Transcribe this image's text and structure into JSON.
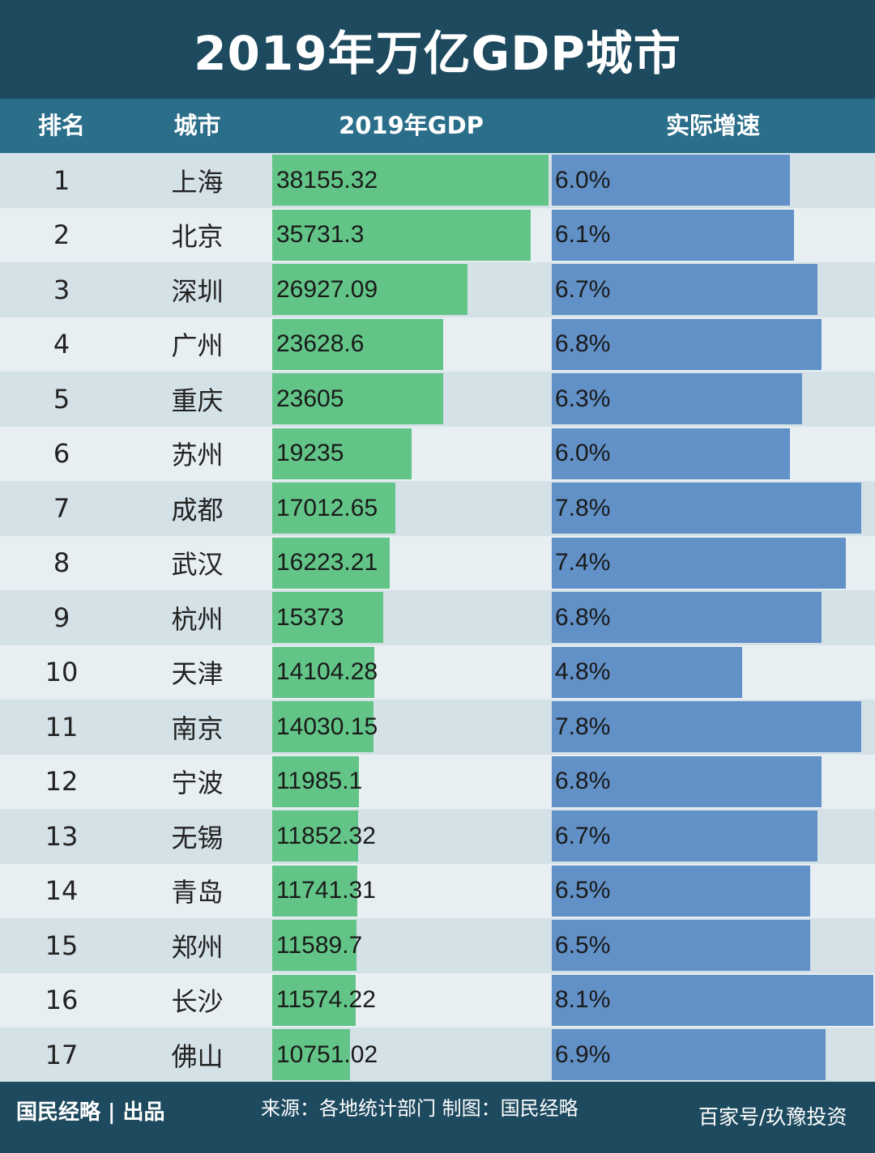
{
  "title": "2019年万亿GDP城市",
  "headers": {
    "rank": "排名",
    "city": "城市",
    "gdp": "2019年GDP",
    "growth": "实际增速"
  },
  "colors": {
    "gdp_bar": "#62c587",
    "growth_bar": "#6291c8",
    "header": "#2a6e8a",
    "dark": "#1d4a5e"
  },
  "chart_data": {
    "type": "table",
    "columns": [
      "排名",
      "城市",
      "2019年GDP",
      "实际增速"
    ],
    "rows": [
      {
        "rank": "1",
        "city": "上海",
        "gdp": "38155.32",
        "growth": "6.0%"
      },
      {
        "rank": "2",
        "city": "北京",
        "gdp": "35731.3",
        "growth": "6.1%"
      },
      {
        "rank": "3",
        "city": "深圳",
        "gdp": "26927.09",
        "growth": "6.7%"
      },
      {
        "rank": "4",
        "city": "广州",
        "gdp": "23628.6",
        "growth": "6.8%"
      },
      {
        "rank": "5",
        "city": "重庆",
        "gdp": "23605",
        "growth": "6.3%"
      },
      {
        "rank": "6",
        "city": "苏州",
        "gdp": "19235",
        "growth": "6.0%"
      },
      {
        "rank": "7",
        "city": "成都",
        "gdp": "17012.65",
        "growth": "7.8%"
      },
      {
        "rank": "8",
        "city": "武汉",
        "gdp": "16223.21",
        "growth": "7.4%"
      },
      {
        "rank": "9",
        "city": "杭州",
        "gdp": "15373",
        "growth": "6.8%"
      },
      {
        "rank": "10",
        "city": "天津",
        "gdp": "14104.28",
        "growth": "4.8%"
      },
      {
        "rank": "11",
        "city": "南京",
        "gdp": "14030.15",
        "growth": "7.8%"
      },
      {
        "rank": "12",
        "city": "宁波",
        "gdp": "11985.1",
        "growth": "6.8%"
      },
      {
        "rank": "13",
        "city": "无锡",
        "gdp": "11852.32",
        "growth": "6.7%"
      },
      {
        "rank": "14",
        "city": "青岛",
        "gdp": "11741.31",
        "growth": "6.5%"
      },
      {
        "rank": "15",
        "city": "郑州",
        "gdp": "11589.7",
        "growth": "6.5%"
      },
      {
        "rank": "16",
        "city": "长沙",
        "gdp": "11574.22",
        "growth": "8.1%"
      },
      {
        "rank": "17",
        "city": "佛山",
        "gdp": "10751.02",
        "growth": "6.9%"
      }
    ]
  },
  "footer": {
    "brand": "国民经略 | 出品",
    "source": "来源：各地统计部门 制图：国民经略",
    "corner": "百家号/玖豫投资"
  }
}
